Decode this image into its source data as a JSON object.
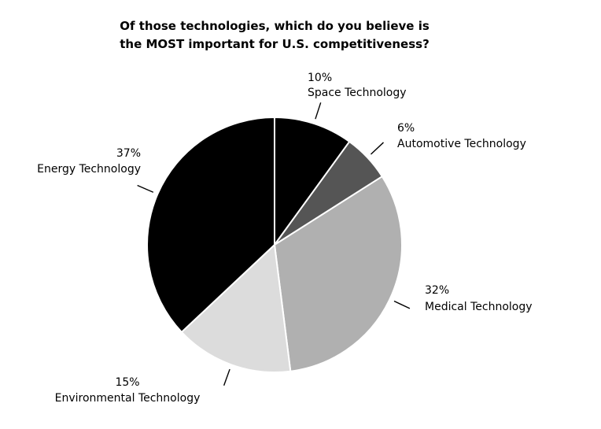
{
  "chart_data": {
    "type": "pie",
    "title": "Of those technologies, which do you believe is the MOST important for U.S. competitiveness?",
    "title_lines": [
      "Of those technologies, which do you believe is",
      "the MOST important for U.S. competitiveness?"
    ],
    "slices": [
      {
        "label": "Space Technology",
        "value": 10,
        "value_label": "10%",
        "color": "#000000"
      },
      {
        "label": "Automotive Technology",
        "value": 6,
        "value_label": "6%",
        "color": "#555555"
      },
      {
        "label": "Medical Technology",
        "value": 32,
        "value_label": "32%",
        "color": "#b0b0b0"
      },
      {
        "label": "Environmental Technology",
        "value": 15,
        "value_label": "15%",
        "color": "#dcdcdc"
      },
      {
        "label": "Energy Technology",
        "value": 37,
        "value_label": "37%",
        "color": "#000000"
      }
    ],
    "start_angle_deg": 0,
    "direction": "clockwise",
    "legend": "none"
  }
}
